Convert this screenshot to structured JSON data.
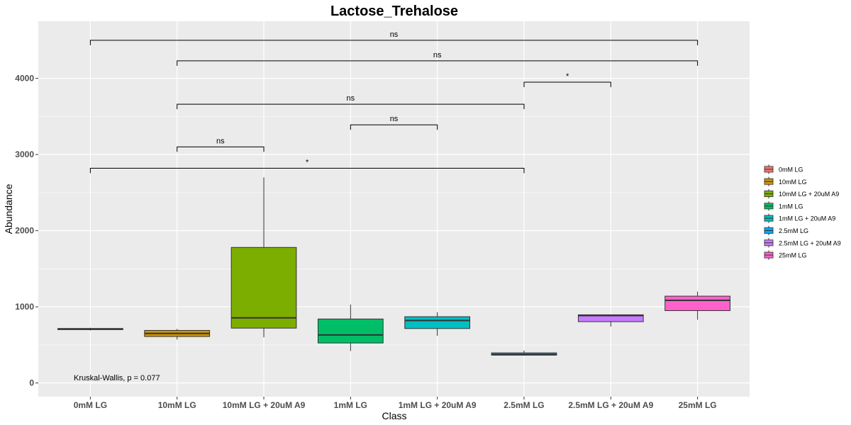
{
  "chart_data": {
    "type": "box",
    "title": "Lactose_Trehalose",
    "xlabel": "Class",
    "ylabel": "Abundance",
    "ylim": [
      -180,
      4750
    ],
    "yticks": [
      0,
      1000,
      2000,
      3000,
      4000
    ],
    "grid": true,
    "legend_position": "right",
    "categories": [
      "0mM LG",
      "10mM LG",
      "10mM LG + 20uM A9",
      "1mM LG",
      "1mM LG + 20uM A9",
      "2.5mM LG",
      "2.5mM LG + 20uM A9",
      "25mM LG"
    ],
    "colors": [
      "#F8766D",
      "#CD9600",
      "#7CAE00",
      "#00BE67",
      "#00BFC4",
      "#00A9FF",
      "#C77CFF",
      "#FF61CC"
    ],
    "boxes": [
      {
        "min": 690,
        "q1": 700,
        "median": 710,
        "q3": 715,
        "max": 725
      },
      {
        "min": 570,
        "q1": 610,
        "median": 650,
        "q3": 690,
        "max": 710
      },
      {
        "min": 600,
        "q1": 720,
        "median": 855,
        "q3": 1780,
        "max": 2700
      },
      {
        "min": 420,
        "q1": 525,
        "median": 630,
        "q3": 840,
        "max": 1030
      },
      {
        "min": 620,
        "q1": 715,
        "median": 820,
        "q3": 870,
        "max": 930
      },
      {
        "min": 360,
        "q1": 365,
        "median": 375,
        "q3": 395,
        "max": 425
      },
      {
        "min": 740,
        "q1": 805,
        "median": 885,
        "q3": 895,
        "max": 900
      },
      {
        "min": 830,
        "q1": 950,
        "median": 1085,
        "q3": 1140,
        "max": 1200
      }
    ],
    "comparisons": [
      {
        "from": 0,
        "to": 7,
        "y": 4500,
        "label": "ns"
      },
      {
        "from": 1,
        "to": 7,
        "y": 4230,
        "label": "ns"
      },
      {
        "from": 5,
        "to": 6,
        "y": 3950,
        "label": "*"
      },
      {
        "from": 1,
        "to": 5,
        "y": 3660,
        "label": "ns"
      },
      {
        "from": 3,
        "to": 4,
        "y": 3390,
        "label": "ns"
      },
      {
        "from": 1,
        "to": 2,
        "y": 3100,
        "label": "ns"
      },
      {
        "from": 0,
        "to": 5,
        "y": 2820,
        "label": "*"
      }
    ],
    "annotation": "Kruskal-Wallis, p = 0.077"
  }
}
